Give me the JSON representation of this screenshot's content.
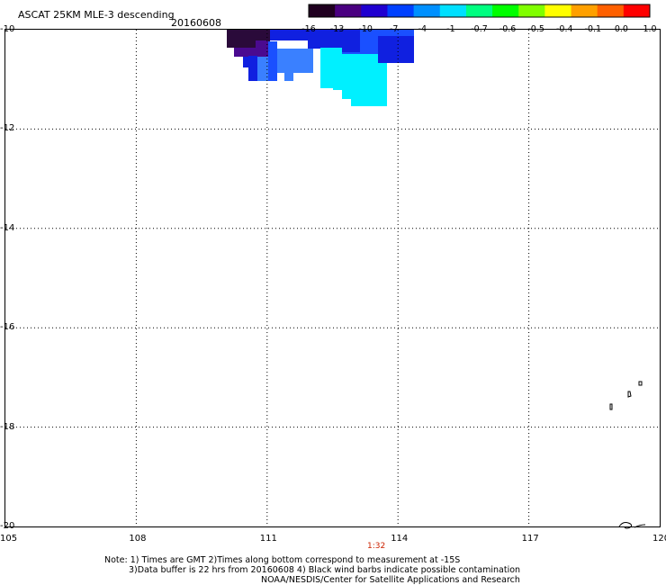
{
  "header": {
    "title": "ASCAT 25KM MLE-3 descending",
    "date": "20160608"
  },
  "colorbar": {
    "labels": [
      "-16",
      "-13",
      "-10",
      "-7",
      "-4",
      "-1",
      "-0.7",
      "-0.6",
      "-0.5",
      "-0.4",
      "-0.1",
      "0.0",
      "1.0"
    ],
    "gradient_stops": [
      "#200020",
      "#4a0080",
      "#2000d0",
      "#0040ff",
      "#0090ff",
      "#00e0ff",
      "#00ff80",
      "#00ff00",
      "#80ff00",
      "#ffff00",
      "#ffa000",
      "#ff6000",
      "#ff0000"
    ]
  },
  "axes": {
    "lon_ticks": [
      "105",
      "108",
      "111",
      "114",
      "117",
      "120"
    ],
    "lat_ticks": [
      "-10",
      "-12",
      "-14",
      "-16",
      "-18",
      "-20"
    ],
    "lon_range": [
      105,
      120
    ],
    "lat_range": [
      -20,
      -10
    ]
  },
  "swath_colors": {
    "dark": "#2a0a3a",
    "purple": "#4a0a90",
    "blue": "#1020e0",
    "medium_blue": "#1a50ff",
    "light_blue": "#3a80ff",
    "cyan": "#00f0ff"
  },
  "time_label": "1:32",
  "notes": [
    "Note: 1) Times are GMT 2)Times along bottom correspond to measurement at -15S",
    "3)Data buffer is 22 hrs from 20160608 4) Black wind barbs indicate possible contamination",
    "NOAA/NESDIS/Center for Satellite Applications and Research"
  ]
}
